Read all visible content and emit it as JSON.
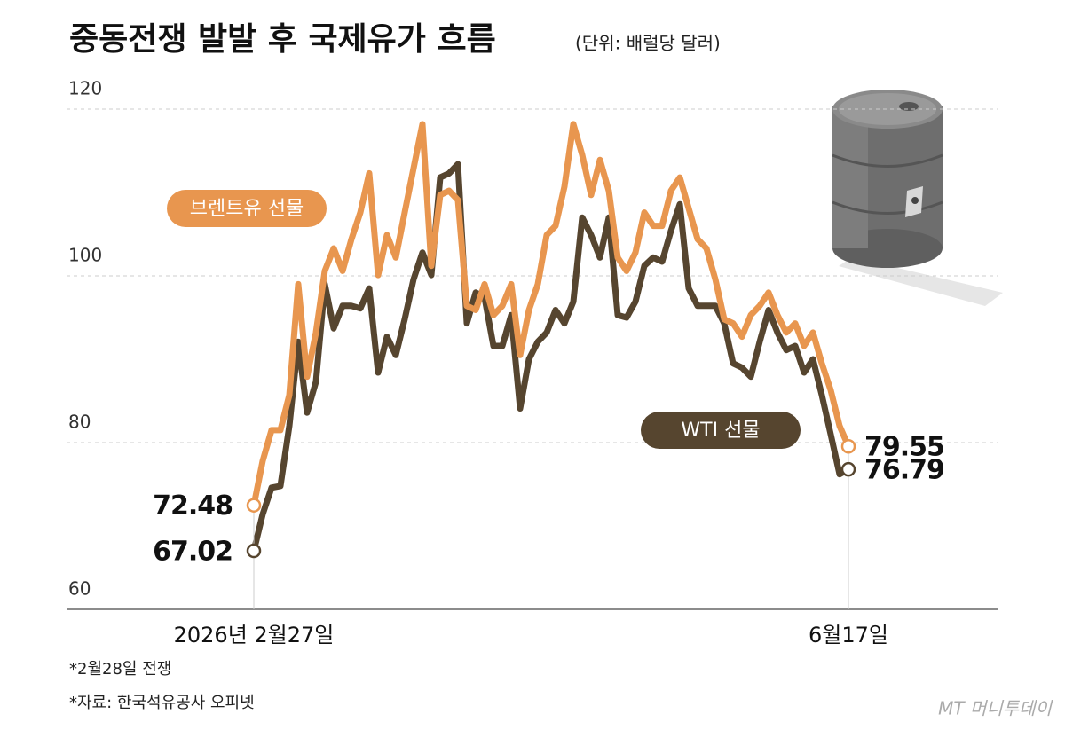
{
  "chart_data": {
    "type": "line",
    "title": "중동전쟁 발발 후 국제유가 흐름",
    "subtitle": "(단위: 배럴당 달러)",
    "notes": [
      "*2월28일 전쟁",
      "*자료: 한국석유공사 오피넷"
    ],
    "source_logo": "MT 머니투데이",
    "categories": [
      "2026년 2월27일",
      null,
      null,
      null,
      null,
      null,
      null,
      null,
      null,
      null,
      null,
      null,
      null,
      null,
      null,
      null,
      null,
      null,
      null,
      null,
      null,
      null,
      null,
      null,
      null,
      null,
      null,
      null,
      null,
      null,
      null,
      null,
      null,
      null,
      null,
      null,
      null,
      null,
      null,
      null,
      null,
      null,
      null,
      null,
      null,
      null,
      null,
      null,
      null,
      null,
      null,
      null,
      null,
      null,
      null,
      null,
      null,
      null,
      null,
      null,
      null,
      null,
      null,
      null,
      null,
      null,
      null,
      "6월17일"
    ],
    "ylim": [
      60,
      120
    ],
    "yticks": [
      60,
      80,
      100,
      120
    ],
    "grid": true,
    "series": [
      {
        "name": "브렌트유 선물",
        "color": "#e8964f",
        "values": [
          72.48,
          77.8,
          81.5,
          81.5,
          85.7,
          99.0,
          87.9,
          93.2,
          100.6,
          103.3,
          100.6,
          104.4,
          107.6,
          112.3,
          100.1,
          104.9,
          102.2,
          107.6,
          112.9,
          118.2,
          101.2,
          109.7,
          110.2,
          109.1,
          96.4,
          95.9,
          99.0,
          95.3,
          96.4,
          99.0,
          90.5,
          95.9,
          99.0,
          104.9,
          106.0,
          110.7,
          118.2,
          114.5,
          109.7,
          113.9,
          110.2,
          102.2,
          100.6,
          102.8,
          107.6,
          106.0,
          106.0,
          110.2,
          111.8,
          108.1,
          104.4,
          103.3,
          99.6,
          94.8,
          94.3,
          92.7,
          95.3,
          96.4,
          98.0,
          95.3,
          93.2,
          94.3,
          91.6,
          93.2,
          89.5,
          86.3,
          82.0,
          79.55
        ]
      },
      {
        "name": "WTI 선물",
        "color": "#56452f",
        "values": [
          67.02,
          71.4,
          74.6,
          74.8,
          82.0,
          92.1,
          83.6,
          87.3,
          99.0,
          93.7,
          96.4,
          96.4,
          96.1,
          98.5,
          88.4,
          92.7,
          90.5,
          94.8,
          99.6,
          102.8,
          100.1,
          111.8,
          112.3,
          113.4,
          94.3,
          98.0,
          97.4,
          91.6,
          91.6,
          95.3,
          84.1,
          90.0,
          92.1,
          93.2,
          95.9,
          94.3,
          96.9,
          107.0,
          104.9,
          102.2,
          107.0,
          95.3,
          95.0,
          96.9,
          101.2,
          102.2,
          101.7,
          105.4,
          108.6,
          98.5,
          96.4,
          96.4,
          96.4,
          94.3,
          89.5,
          89.0,
          87.9,
          92.1,
          95.9,
          93.2,
          91.1,
          91.6,
          88.4,
          90.0,
          85.7,
          81.0,
          76.2,
          76.79
        ]
      }
    ]
  }
}
